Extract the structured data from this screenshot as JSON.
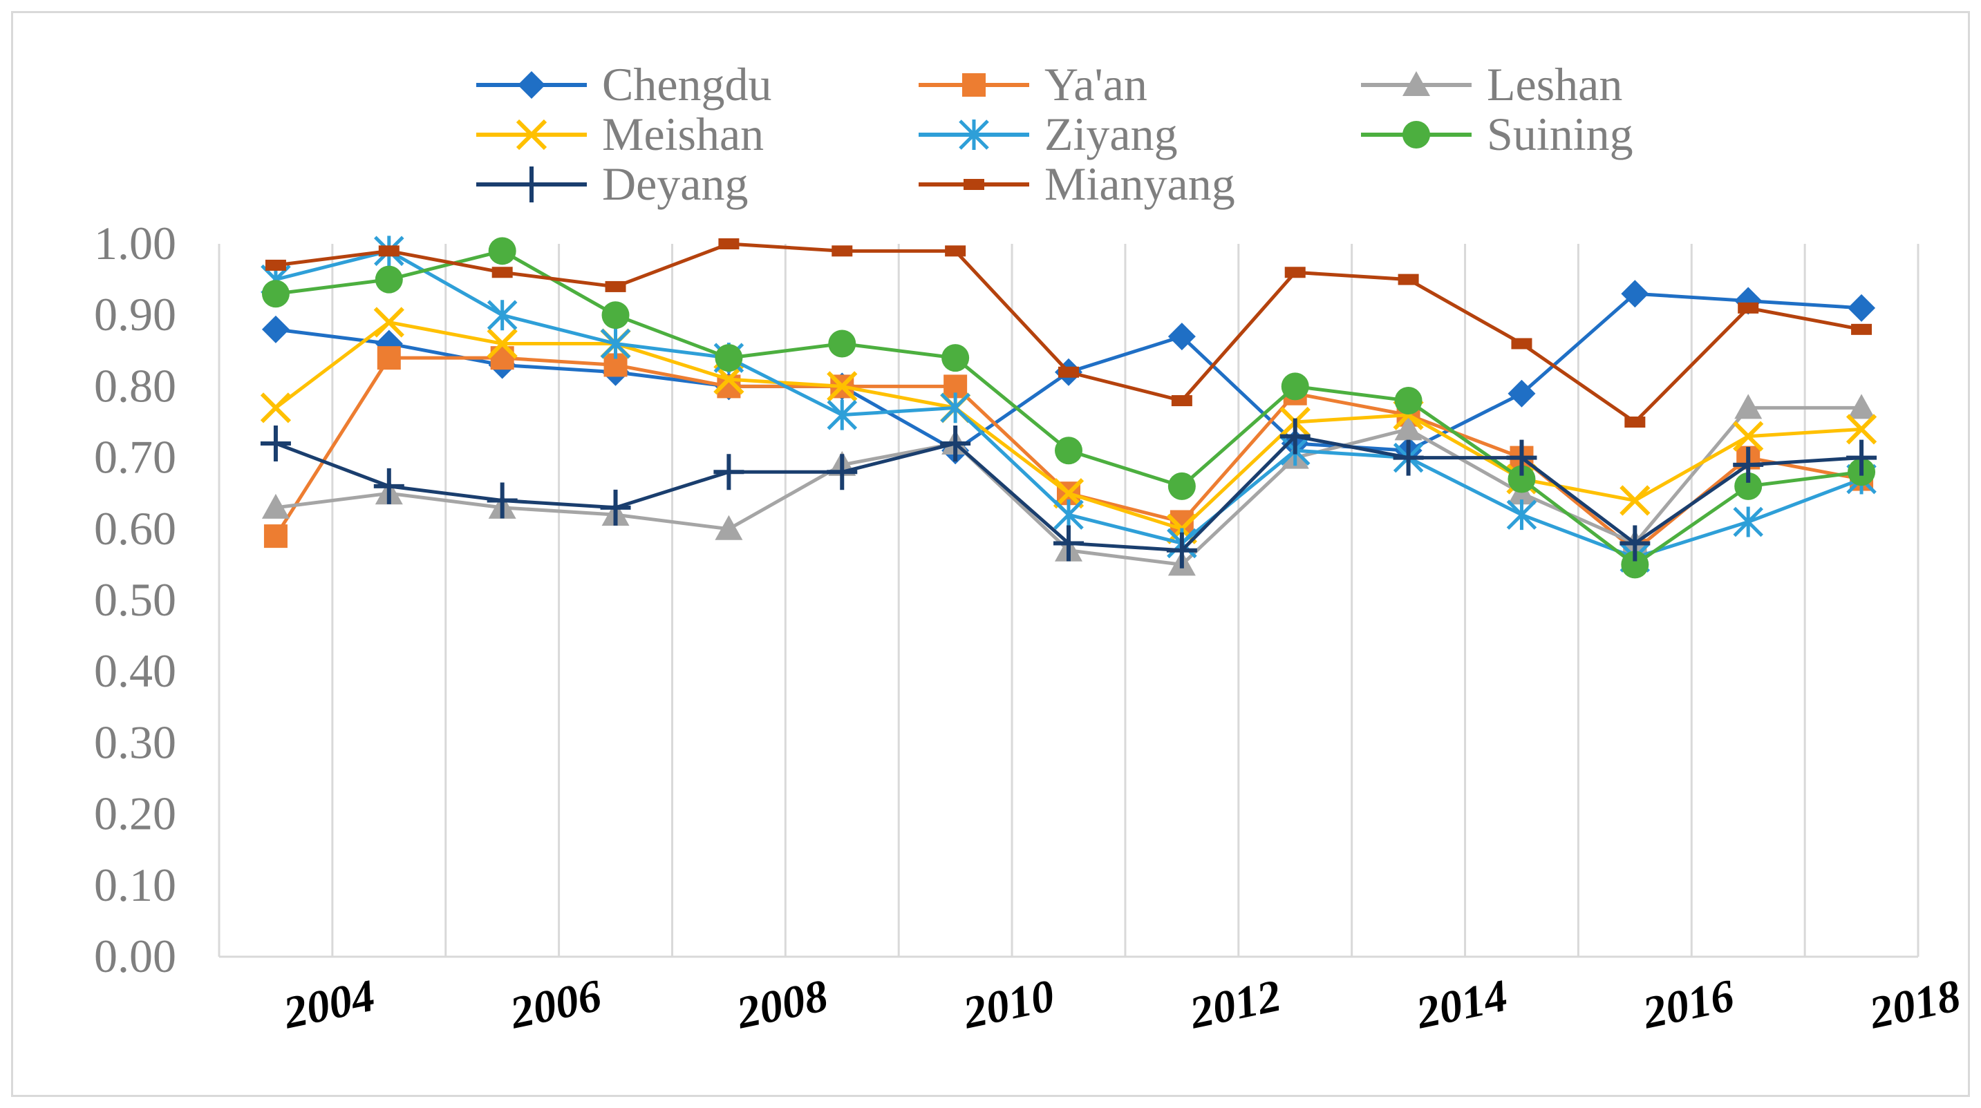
{
  "chart_data": {
    "type": "line",
    "title": "",
    "xlabel": "",
    "ylabel": "",
    "ylim": [
      0,
      1
    ],
    "y_ticks": [
      "0.00",
      "0.10",
      "0.20",
      "0.30",
      "0.40",
      "0.50",
      "0.60",
      "0.70",
      "0.80",
      "0.90",
      "1.00"
    ],
    "x": [
      2004,
      2005,
      2006,
      2007,
      2008,
      2009,
      2010,
      2011,
      2012,
      2013,
      2014,
      2015,
      2016,
      2017,
      2018
    ],
    "x_tick_labels": [
      "2004",
      "2006",
      "2008",
      "2010",
      "2012",
      "2014",
      "2016",
      "2018"
    ],
    "grid": "vertical",
    "legend_position": "top",
    "series": [
      {
        "name": "Chengdu",
        "color": "#1f6fc5",
        "marker": "diamond",
        "values": [
          0.88,
          0.86,
          0.83,
          0.82,
          0.8,
          0.8,
          0.71,
          0.82,
          0.87,
          0.72,
          0.71,
          0.79,
          0.93,
          0.92,
          0.91
        ]
      },
      {
        "name": "Ya'an",
        "color": "#ed7d31",
        "marker": "square",
        "values": [
          0.59,
          0.84,
          0.84,
          0.83,
          0.8,
          0.8,
          0.8,
          0.65,
          0.61,
          0.79,
          0.76,
          0.7,
          0.57,
          0.7,
          0.67
        ]
      },
      {
        "name": "Leshan",
        "color": "#a5a5a5",
        "marker": "triangle",
        "values": [
          0.63,
          0.65,
          0.63,
          0.62,
          0.6,
          0.69,
          0.72,
          0.57,
          0.55,
          0.7,
          0.74,
          0.65,
          0.58,
          0.77,
          0.77
        ]
      },
      {
        "name": "Meishan",
        "color": "#ffc000",
        "marker": "x",
        "values": [
          0.77,
          0.89,
          0.86,
          0.86,
          0.81,
          0.8,
          0.77,
          0.65,
          0.6,
          0.75,
          0.76,
          0.67,
          0.64,
          0.73,
          0.74
        ]
      },
      {
        "name": "Ziyang",
        "color": "#2e9fd8",
        "marker": "asterisk",
        "values": [
          0.95,
          0.99,
          0.9,
          0.86,
          0.84,
          0.76,
          0.77,
          0.62,
          0.58,
          0.71,
          0.7,
          0.62,
          0.56,
          0.61,
          0.67
        ]
      },
      {
        "name": "Suining",
        "color": "#4caf3f",
        "marker": "circle",
        "values": [
          0.93,
          0.95,
          0.99,
          0.9,
          0.84,
          0.86,
          0.84,
          0.71,
          0.66,
          0.8,
          0.78,
          0.67,
          0.55,
          0.66,
          0.68
        ]
      },
      {
        "name": "Deyang",
        "color": "#1a3e6e",
        "marker": "plus",
        "values": [
          0.72,
          0.66,
          0.64,
          0.63,
          0.68,
          0.68,
          0.72,
          0.58,
          0.57,
          0.73,
          0.7,
          0.7,
          0.58,
          0.69,
          0.7
        ]
      },
      {
        "name": "Mianyang",
        "color": "#b5420d",
        "marker": "dash",
        "values": [
          0.97,
          0.99,
          0.96,
          0.94,
          1.0,
          0.99,
          0.99,
          0.82,
          0.78,
          0.96,
          0.95,
          0.86,
          0.75,
          0.91,
          0.88
        ]
      }
    ]
  }
}
